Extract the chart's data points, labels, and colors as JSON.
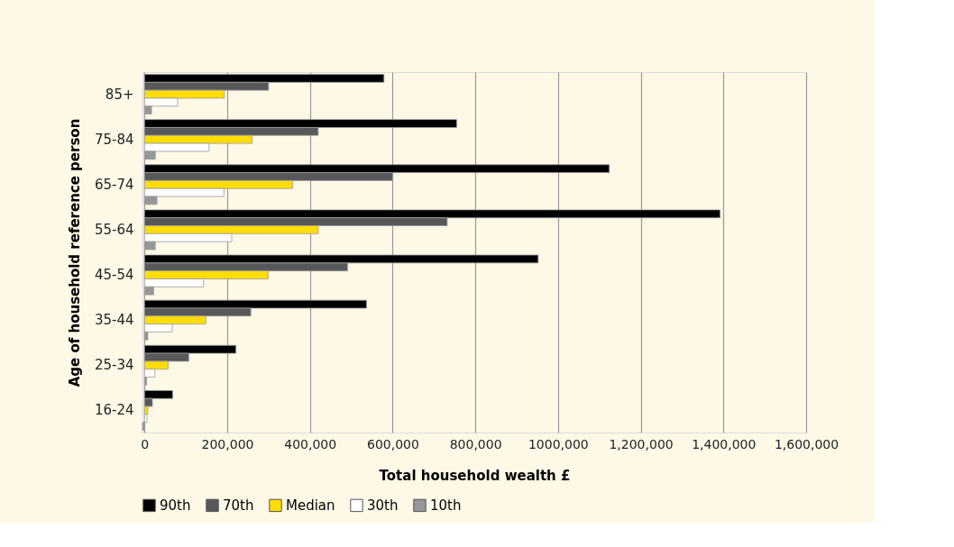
{
  "chart_data": {
    "type": "bar",
    "orientation": "horizontal",
    "xlabel": "Total household wealth £",
    "ylabel": "Age of household reference person",
    "categories": [
      "85+",
      "75-84",
      "65-74",
      "55-64",
      "45-54",
      "35-44",
      "25-34",
      "16-24"
    ],
    "series": [
      {
        "name": "90th",
        "color": "#000000",
        "values": [
          579000,
          755000,
          1124000,
          1392000,
          952000,
          537000,
          221000,
          68000
        ]
      },
      {
        "name": "70th",
        "color": "#58585a",
        "values": [
          300000,
          420000,
          600000,
          732000,
          491000,
          257000,
          107000,
          19000
        ]
      },
      {
        "name": "Median",
        "color": "#ffdd00",
        "values": [
          193000,
          260000,
          358000,
          420000,
          299000,
          148000,
          57000,
          8000
        ]
      },
      {
        "name": "30th",
        "color": "#ffffff",
        "values": [
          80000,
          156000,
          192000,
          211000,
          143000,
          67000,
          25000,
          6000
        ]
      },
      {
        "name": "10th",
        "color": "#969698",
        "values": [
          17000,
          26000,
          30000,
          26000,
          22000,
          8000,
          5000,
          -5000
        ]
      }
    ],
    "xlim": [
      -5000,
      1600000
    ],
    "xticks": [
      0,
      {
        "value": 200000,
        "label": "200,000"
      },
      {
        "value": 400000,
        "label": "400,000"
      },
      {
        "value": 600000,
        "label": "600,000"
      },
      {
        "value": 800000,
        "label": "800,000"
      },
      {
        "value": 1000000,
        "label": "1000,000"
      },
      {
        "value": 1200000,
        "label": "1,200,000"
      },
      {
        "value": 1400000,
        "label": "1,400,000"
      },
      {
        "value": 1600000,
        "label": "1,600,000"
      }
    ],
    "grid": "x",
    "legend": "bottom"
  }
}
